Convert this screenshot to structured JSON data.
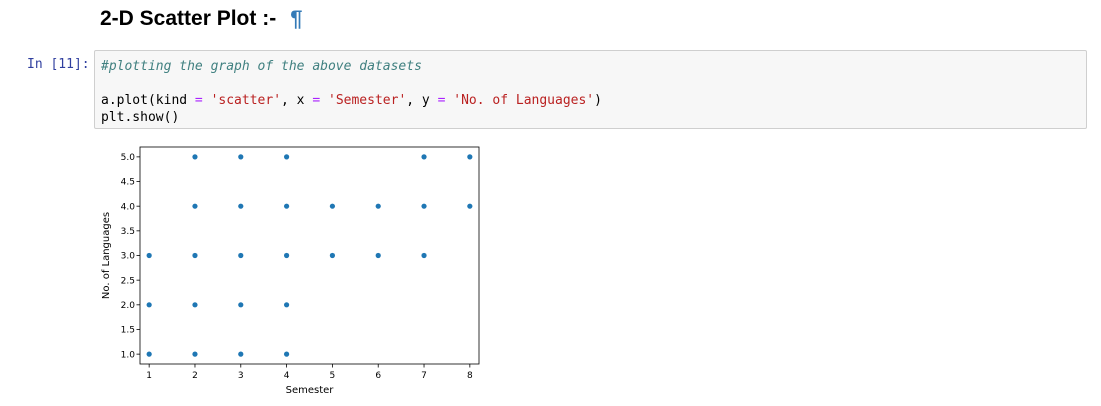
{
  "heading": {
    "title": "2-D Scatter Plot :-",
    "anchor": "¶"
  },
  "cell": {
    "prompt": "In [11]:",
    "lines": [
      [
        {
          "t": "#plotting the graph of the above datasets",
          "c": "cmt"
        }
      ],
      [],
      [
        {
          "t": "a.plot(kind ",
          "c": ""
        },
        {
          "t": "=",
          "c": "op"
        },
        {
          "t": " ",
          "c": ""
        },
        {
          "t": "'scatter'",
          "c": "str"
        },
        {
          "t": ", x ",
          "c": ""
        },
        {
          "t": "=",
          "c": "op"
        },
        {
          "t": " ",
          "c": ""
        },
        {
          "t": "'Semester'",
          "c": "str"
        },
        {
          "t": ", y ",
          "c": ""
        },
        {
          "t": "=",
          "c": "op"
        },
        {
          "t": " ",
          "c": ""
        },
        {
          "t": "'No. of Languages'",
          "c": "str"
        },
        {
          "t": ")",
          "c": ""
        }
      ],
      [
        {
          "t": "plt.show()",
          "c": ""
        }
      ]
    ]
  },
  "chart_data": {
    "type": "scatter",
    "xlabel": "Semester",
    "ylabel": "No. of Languages",
    "xlim": [
      0.8,
      8.2
    ],
    "ylim": [
      0.8,
      5.2
    ],
    "xticks": [
      1,
      2,
      3,
      4,
      5,
      6,
      7,
      8
    ],
    "yticks": [
      1.0,
      1.5,
      2.0,
      2.5,
      3.0,
      3.5,
      4.0,
      4.5,
      5.0
    ],
    "grid": false,
    "marker_color": "#1f77b4",
    "points": [
      [
        1,
        1
      ],
      [
        1,
        2
      ],
      [
        1,
        3
      ],
      [
        2,
        1
      ],
      [
        2,
        2
      ],
      [
        2,
        3
      ],
      [
        2,
        4
      ],
      [
        2,
        5
      ],
      [
        3,
        1
      ],
      [
        3,
        2
      ],
      [
        3,
        3
      ],
      [
        3,
        4
      ],
      [
        3,
        5
      ],
      [
        4,
        1
      ],
      [
        4,
        2
      ],
      [
        4,
        3
      ],
      [
        4,
        4
      ],
      [
        4,
        5
      ],
      [
        5,
        3
      ],
      [
        5,
        4
      ],
      [
        6,
        3
      ],
      [
        6,
        4
      ],
      [
        7,
        3
      ],
      [
        7,
        4
      ],
      [
        7,
        5
      ],
      [
        8,
        4
      ],
      [
        8,
        5
      ]
    ]
  }
}
